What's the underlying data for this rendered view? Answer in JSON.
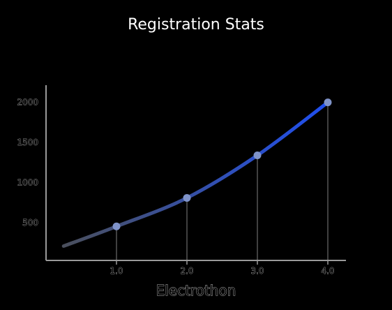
{
  "chart_data": {
    "type": "line",
    "title": "Registration Stats",
    "xlabel": "Electrothon",
    "ylabel": "",
    "x": [
      1.0,
      2.0,
      3.0,
      4.0
    ],
    "xticks": [
      "1.0",
      "2.0",
      "3.0",
      "4.0"
    ],
    "yticks": [
      500,
      1000,
      1500,
      2000
    ],
    "xlim": [
      0.0,
      4.3
    ],
    "ylim": [
      0,
      2150
    ],
    "series": [
      {
        "values": [
          455,
          810,
          1340,
          2000
        ]
      }
    ],
    "curve_start": {
      "x": 0.25,
      "y": 210
    },
    "colors": {
      "line_start": "#4a4f5c",
      "line_end": "#1f4ff0",
      "point": "#7f93c9",
      "axis": "#9a9a9a",
      "drop_line": "#555555"
    },
    "grid": false,
    "legend": "none"
  }
}
